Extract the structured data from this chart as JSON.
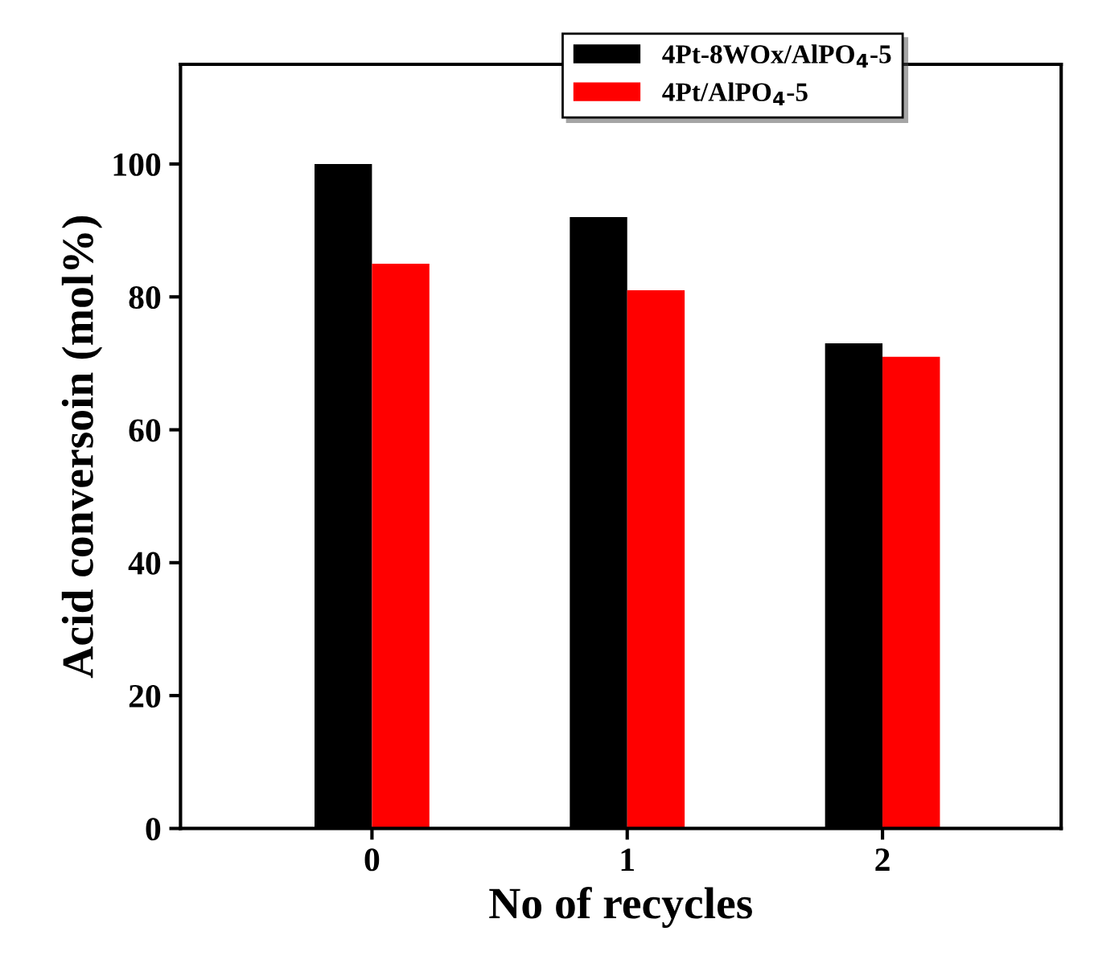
{
  "chart_data": {
    "type": "bar",
    "xlabel": "No of recycles",
    "ylabel": "Acid conversoin (mol%)",
    "categories": [
      "0",
      "1",
      "2"
    ],
    "series": [
      {
        "name": "4Pt-8WOx/AlPO$_{4}$-5",
        "color": "#000000",
        "values": [
          100,
          92,
          73
        ]
      },
      {
        "name": "4Pt/AlPO$_{4}$-5",
        "color": "#ff0000",
        "values": [
          85,
          81,
          71
        ]
      }
    ],
    "ylim": [
      0,
      115
    ],
    "yticks": [
      0,
      20,
      40,
      60,
      80,
      100
    ],
    "grid": false,
    "legend": "top right"
  }
}
